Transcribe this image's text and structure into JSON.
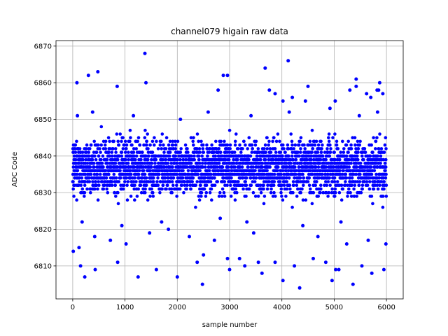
{
  "chart_data": {
    "type": "scatter",
    "title": "channel079 higain raw data",
    "xlabel": "sample number",
    "ylabel": "ADC Code",
    "xlim": [
      -320,
      6320
    ],
    "ylim": [
      6801,
      6871.5
    ],
    "xticks": [
      0,
      1000,
      2000,
      3000,
      4000,
      5000,
      6000
    ],
    "yticks": [
      6810,
      6820,
      6830,
      6840,
      6850,
      6860,
      6870
    ],
    "grid": true,
    "marker_color": "#0000ff",
    "marker": "circle",
    "n_samples": 6000,
    "typical_range": [
      6827,
      6846
    ],
    "center": 6837,
    "series": [
      {
        "x": [
          1380,
          4120,
          3680,
          300,
          480,
          3760,
          2880,
          2960,
          5420,
          80,
          850,
          5870,
          5420,
          1400,
          3870,
          4200,
          4500,
          5620,
          5700,
          5930,
          5820,
          5850,
          5300,
          2780,
          4020,
          4450,
          5020,
          2000,
          4960,
          1250,
          4020,
          5720,
          430,
          230,
          150,
          2480,
          5360,
          4340,
          3620,
          3000,
          5030,
          2380,
          4240,
          2960,
          3550,
          3290,
          10,
          120,
          860,
          1020,
          1600,
          2500,
          3190,
          3870,
          4600,
          4840,
          5090,
          5530,
          5950,
          420,
          720,
          1470,
          1830,
          2230,
          2710,
          3460,
          4690,
          5240,
          5650,
          5990,
          90,
          380,
          1160,
          2060,
          2590,
          3410,
          4140,
          4920,
          5480,
          5830,
          180,
          940,
          1700,
          2820,
          3330,
          4400,
          5130
        ],
        "y": [
          6868,
          6866,
          6864,
          6862,
          6863,
          6858,
          6862,
          6862,
          6861,
          6860,
          6859,
          6860,
          6859,
          6860,
          6857,
          6856,
          6859,
          6857,
          6856,
          6857,
          6858,
          6858,
          6858,
          6858,
          6855,
          6855,
          6855,
          6807,
          6806,
          6807,
          6806,
          6808,
          6809,
          6807,
          6810,
          6805,
          6805,
          6804,
          6808,
          6809,
          6809,
          6811,
          6810,
          6812,
          6811,
          6810,
          6814,
          6815,
          6811,
          6816,
          6809,
          6813,
          6812,
          6811,
          6812,
          6811,
          6809,
          6810,
          6809,
          6818,
          6817,
          6819,
          6820,
          6818,
          6817,
          6819,
          6818,
          6816,
          6817,
          6816,
          6851,
          6852,
          6851,
          6850,
          6852,
          6851,
          6852,
          6853,
          6851,
          6852,
          6822,
          6821,
          6822,
          6823,
          6822,
          6821,
          6822
        ]
      }
    ]
  }
}
